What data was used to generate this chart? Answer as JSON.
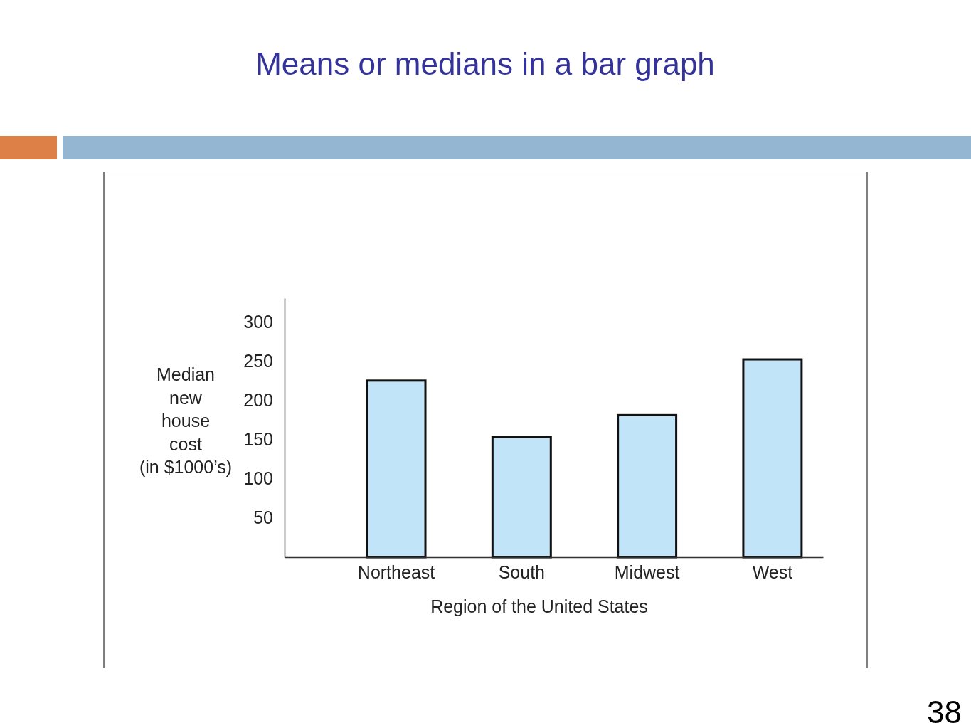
{
  "chart_data": {
    "type": "bar",
    "title": "Means or medians in a bar graph",
    "categories": [
      "Northeast",
      "South",
      "Midwest",
      "West"
    ],
    "values": [
      225,
      153,
      181,
      252
    ],
    "color": "#c2e4f8",
    "xlabel": "Region of the United States",
    "ylabel": "Median\nnew\nhouse\ncost\n(in $1000’s)",
    "ylim": [
      0,
      330
    ],
    "yticks": [
      50,
      100,
      150,
      200,
      250,
      300
    ],
    "annotations": [
      "38"
    ]
  }
}
